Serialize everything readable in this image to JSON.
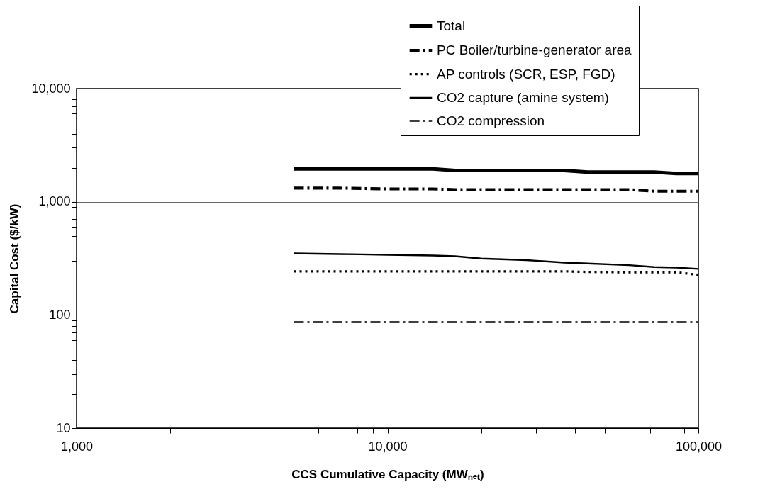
{
  "chart_data": {
    "type": "line",
    "xlabel": "CCS Cumulative Capacity (MWₙₑₜ)",
    "ylabel": "Capital Cost ($/kW)",
    "log": "xy",
    "grid": "y",
    "legend": "top right",
    "marker": "none",
    "x": [
      5000,
      7000,
      10000,
      14000,
      16500,
      20000,
      28000,
      37000,
      44000,
      60000,
      72000,
      85000,
      100000
    ],
    "xlim": [
      1000,
      100000
    ],
    "xticks": [
      {
        "value": 1000,
        "label": "1,000"
      },
      {
        "value": 2000,
        "label": null
      },
      {
        "value": 3000,
        "label": null
      },
      {
        "value": 4000,
        "label": null
      },
      {
        "value": 5000,
        "label": null
      },
      {
        "value": 6000,
        "label": null
      },
      {
        "value": 7000,
        "label": null
      },
      {
        "value": 8000,
        "label": null
      },
      {
        "value": 9000,
        "label": null
      },
      {
        "value": 10000,
        "label": "10,000"
      },
      {
        "value": 20000,
        "label": null
      },
      {
        "value": 30000,
        "label": null
      },
      {
        "value": 40000,
        "label": null
      },
      {
        "value": 50000,
        "label": null
      },
      {
        "value": 60000,
        "label": null
      },
      {
        "value": 70000,
        "label": null
      },
      {
        "value": 80000,
        "label": null
      },
      {
        "value": 90000,
        "label": null
      },
      {
        "value": 100000,
        "label": "100,000"
      }
    ],
    "ylim": [
      10,
      10000
    ],
    "yticks": [
      10,
      {
        "value": 20,
        "label": null
      },
      {
        "value": 30,
        "label": null
      },
      {
        "value": 40,
        "label": null
      },
      {
        "value": 50,
        "label": null
      },
      {
        "value": 60,
        "label": null
      },
      {
        "value": 70,
        "label": null
      },
      {
        "value": 80,
        "label": null
      },
      {
        "value": 90,
        "label": null
      },
      100,
      {
        "value": 200,
        "label": null
      },
      {
        "value": 300,
        "label": null
      },
      {
        "value": 400,
        "label": null
      },
      {
        "value": 500,
        "label": null
      },
      {
        "value": 600,
        "label": null
      },
      {
        "value": 700,
        "label": null
      },
      {
        "value": 800,
        "label": null
      },
      {
        "value": 900,
        "label": null
      },
      {
        "value": 1000,
        "label": "1,000"
      },
      {
        "value": 2000,
        "label": null
      },
      {
        "value": 3000,
        "label": null
      },
      {
        "value": 4000,
        "label": null
      },
      {
        "value": 5000,
        "label": null
      },
      {
        "value": 6000,
        "label": null
      },
      {
        "value": 7000,
        "label": null
      },
      {
        "value": 8000,
        "label": null
      },
      {
        "value": 9000,
        "label": null
      },
      {
        "value": 10000,
        "label": "10,000"
      }
    ],
    "series": [
      {
        "name": "Total",
        "color": "#000000",
        "line_style": "solid",
        "values": [
          1950,
          1950,
          1950,
          1950,
          1890,
          1890,
          1890,
          1890,
          1830,
          1830,
          1830,
          1780,
          1780
        ]
      },
      {
        "name": "PC Boiler/turbine-generator area",
        "color": "#000000",
        "line_style": "dashed",
        "values": [
          1320,
          1320,
          1300,
          1300,
          1280,
          1280,
          1280,
          1280,
          1280,
          1280,
          1240,
          1240,
          1240
        ]
      },
      {
        "name": "AP controls (SCR, ESP, FGD)",
        "color": "#000000",
        "line_style": "dotted",
        "values": [
          243,
          243,
          243,
          243,
          243,
          243,
          243,
          243,
          240,
          238,
          238,
          238,
          226
        ]
      },
      {
        "name": "CO2 capture (amine system)",
        "color": "#000000",
        "line_style": "solid",
        "values": [
          350,
          345,
          340,
          335,
          330,
          315,
          305,
          290,
          285,
          275,
          265,
          262,
          255
        ]
      },
      {
        "name": "CO2 compression",
        "color": "#000000",
        "line_style": "dashed",
        "values": [
          87,
          87,
          87,
          87,
          87,
          87,
          87,
          87,
          87,
          87,
          87,
          87,
          87
        ]
      }
    ]
  }
}
